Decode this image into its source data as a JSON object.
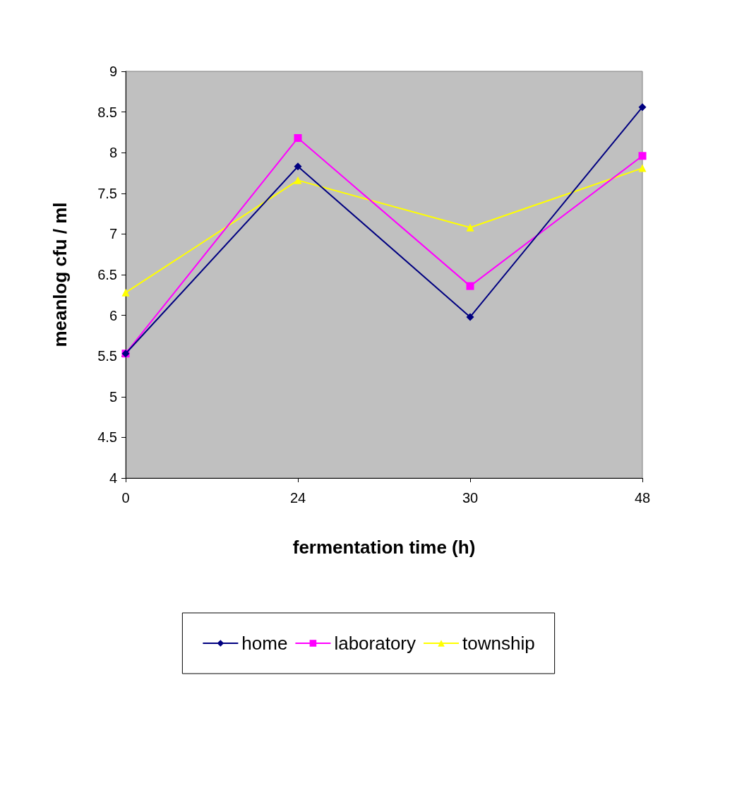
{
  "chart_data": {
    "type": "line",
    "xlabel": "fermentation time (h)",
    "ylabel": "meanlog cfu / ml",
    "categories": [
      "0",
      "24",
      "30",
      "48"
    ],
    "ylim": [
      4,
      9
    ],
    "yticks": [
      4,
      4.5,
      5,
      5.5,
      6,
      6.5,
      7,
      7.5,
      8,
      8.5,
      9
    ],
    "grid": false,
    "legend": "bottom",
    "line_style": "solid",
    "series": [
      {
        "name": "home",
        "color": "#000080",
        "marker": "diamond",
        "values": [
          5.53,
          7.83,
          5.98,
          8.56
        ]
      },
      {
        "name": "laboratory",
        "color": "#ff00ff",
        "marker": "square",
        "values": [
          5.53,
          8.18,
          6.36,
          7.96
        ]
      },
      {
        "name": "township",
        "color": "#ffff00",
        "marker": "triangle",
        "values": [
          6.28,
          7.66,
          7.08,
          7.81
        ]
      }
    ]
  }
}
